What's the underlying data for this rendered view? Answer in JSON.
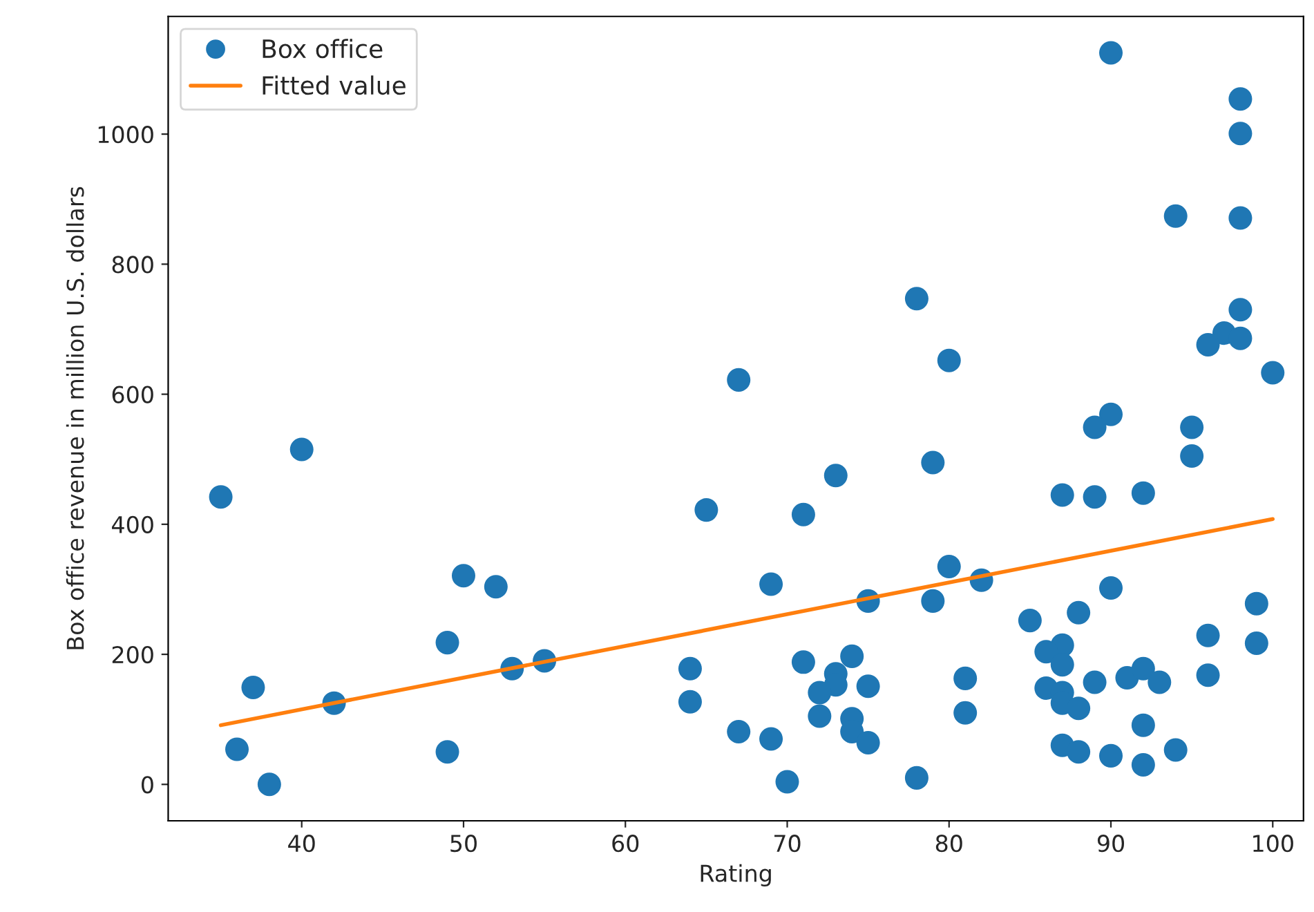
{
  "chart_data": {
    "type": "scatter",
    "xlabel": "Rating",
    "ylabel": "Box office revenue in million U.S. dollars",
    "xlim": [
      31.75,
      101.9
    ],
    "ylim": [
      -56,
      1181
    ],
    "xticks": [
      40,
      50,
      60,
      70,
      80,
      90,
      100
    ],
    "yticks": [
      0,
      200,
      400,
      600,
      800,
      1000
    ],
    "legend": "top left",
    "grid": false,
    "marker": "circle",
    "series": [
      {
        "name": "Box office",
        "color": "#1f77b4",
        "x": [
          35,
          40,
          37,
          36,
          38,
          42,
          50,
          52,
          49,
          49,
          53,
          55,
          67,
          80,
          79,
          73,
          65,
          71,
          69,
          80,
          75,
          79,
          64,
          64,
          71,
          74,
          73,
          73,
          72,
          75,
          72,
          74,
          74,
          75,
          67,
          69,
          70,
          78,
          81,
          78,
          90,
          98,
          98,
          94,
          98,
          98,
          97,
          96,
          98,
          100,
          90,
          89,
          95,
          95,
          87,
          89,
          92,
          82,
          90,
          99,
          99,
          96,
          96,
          85,
          88,
          87,
          86,
          87,
          81,
          86,
          87,
          87,
          88,
          89,
          91,
          92,
          93,
          92,
          87,
          88,
          90,
          92,
          94
        ],
        "values": [
          442,
          515,
          149,
          54,
          0,
          125,
          321,
          304,
          218,
          50,
          178,
          190,
          622,
          652,
          495,
          475,
          422,
          415,
          308,
          335,
          282,
          282,
          178,
          127,
          188,
          197,
          170,
          153,
          141,
          151,
          105,
          101,
          81,
          64,
          81,
          70,
          4,
          10,
          163,
          747,
          1125,
          1054,
          1001,
          874,
          871,
          730,
          694,
          676,
          686,
          633,
          569,
          549,
          549,
          505,
          445,
          442,
          448,
          314,
          302,
          278,
          217,
          229,
          168,
          252,
          264,
          214,
          204,
          184,
          110,
          148,
          141,
          125,
          117,
          157,
          164,
          178,
          157,
          91,
          60,
          50,
          44,
          30,
          53
        ]
      },
      {
        "name": "Fitted value",
        "color": "#ff7f0e",
        "type": "line",
        "marker": "none",
        "line_style": "solid",
        "x": [
          35,
          100
        ],
        "values": [
          91,
          408
        ]
      }
    ]
  }
}
